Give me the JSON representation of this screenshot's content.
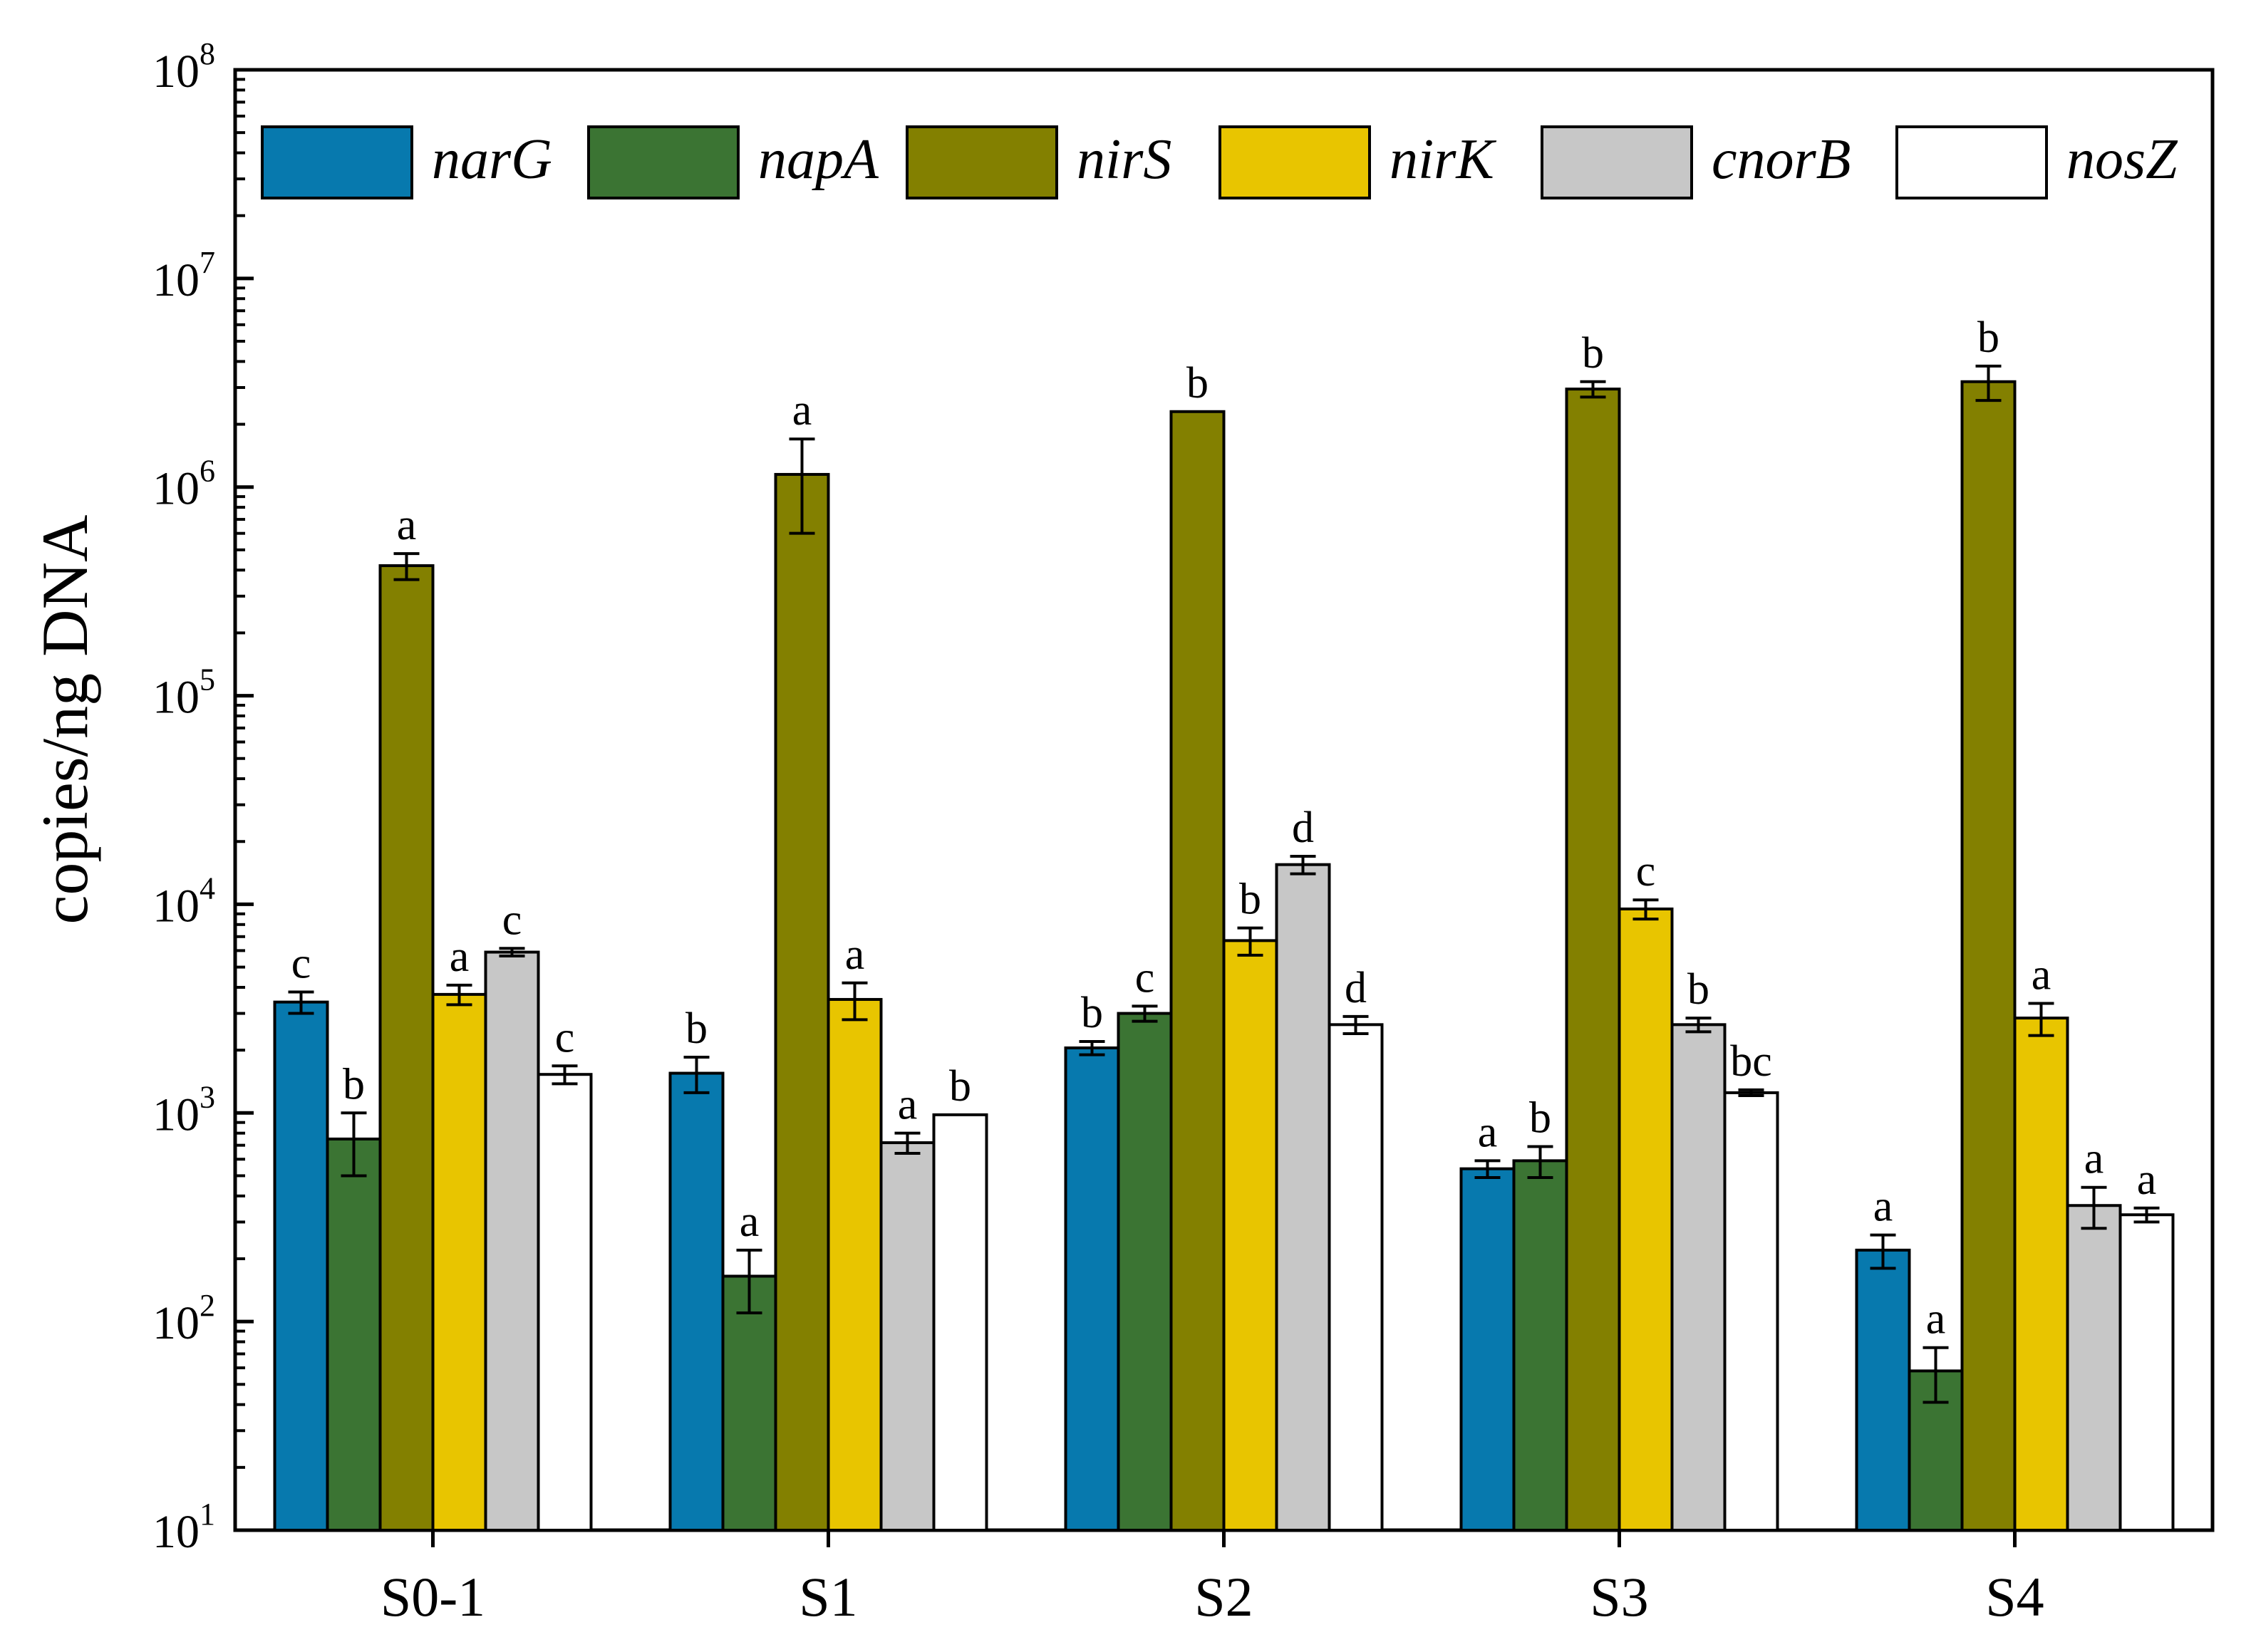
{
  "chart_data": {
    "type": "bar",
    "title": "",
    "xlabel": "",
    "ylabel": "copies/ng DNA",
    "yscale": "log",
    "ylim": [
      10,
      100000000
    ],
    "ytick_exponents": [
      "1",
      "2",
      "3",
      "4",
      "5",
      "6",
      "7",
      "8"
    ],
    "ytick_base": "10",
    "legend_position": "top",
    "categories": [
      "S0-1",
      "S1",
      "S2",
      "S3",
      "S4"
    ],
    "series": [
      {
        "name": "narG",
        "color": "#0779ae",
        "values": [
          3400,
          1550,
          2050,
          540,
          220
        ],
        "errors": [
          400,
          300,
          150,
          50,
          40
        ],
        "letters": [
          "c",
          "b",
          "b",
          "a",
          "a"
        ]
      },
      {
        "name": "napA",
        "color": "#3b7433",
        "values": [
          750,
          165,
          3000,
          590,
          58
        ],
        "errors": [
          250,
          55,
          250,
          100,
          17
        ],
        "letters": [
          "b",
          "a",
          "c",
          "b",
          "a"
        ]
      },
      {
        "name": "nirS",
        "color": "#838000",
        "values": [
          420000,
          1150000,
          2300000,
          2950000,
          3200000
        ],
        "errors": [
          60000,
          550000,
          0,
          250000,
          600000
        ],
        "letters": [
          "a",
          "a",
          "b",
          "b",
          "b"
        ]
      },
      {
        "name": "nirK",
        "color": "#e8c500",
        "values": [
          3700,
          3500,
          6700,
          9500,
          2850
        ],
        "errors": [
          400,
          700,
          1000,
          1000,
          500
        ],
        "letters": [
          "a",
          "a",
          "b",
          "c",
          "a"
        ]
      },
      {
        "name": "cnorB",
        "color": "#c7c7c7",
        "values": [
          5900,
          720,
          15500,
          2650,
          360
        ],
        "errors": [
          250,
          80,
          1500,
          200,
          80
        ],
        "letters": [
          "c",
          "a",
          "d",
          "b",
          "a"
        ]
      },
      {
        "name": "nosZ",
        "color": "#ffffff",
        "values": [
          1530,
          980,
          2650,
          1250,
          325
        ],
        "errors": [
          150,
          0,
          250,
          40,
          25
        ],
        "letters": [
          "c",
          "b",
          "d",
          "bc",
          "a"
        ]
      }
    ]
  }
}
